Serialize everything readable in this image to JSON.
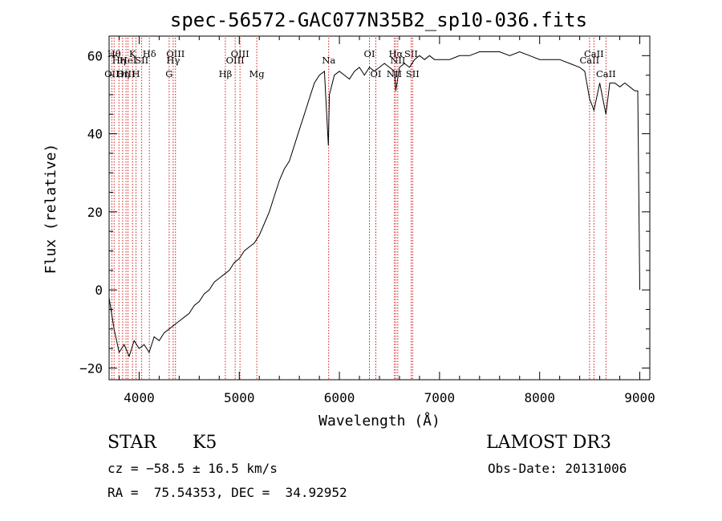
{
  "chart_data": {
    "type": "line",
    "title": "spec-56572-GAC077N35B2_sp10-036.fits",
    "xlabel": "Wavelength (Å)",
    "ylabel": "Flux (relative)",
    "xlim": [
      3700,
      9100
    ],
    "ylim": [
      -23,
      65
    ],
    "xticks": [
      4000,
      5000,
      6000,
      7000,
      8000,
      9000
    ],
    "xtick_labels": [
      "4000",
      "5000",
      "6000",
      "7000",
      "8000",
      "9000"
    ],
    "yticks": [
      -20,
      0,
      20,
      40,
      60
    ],
    "ytick_labels": [
      "−20",
      "0",
      "20",
      "40",
      "60"
    ],
    "series": [
      {
        "name": "spectrum",
        "x": [
          3700,
          3750,
          3800,
          3850,
          3900,
          3950,
          4000,
          4050,
          4100,
          4150,
          4200,
          4250,
          4300,
          4350,
          4400,
          4450,
          4500,
          4550,
          4600,
          4650,
          4700,
          4750,
          4800,
          4850,
          4900,
          4950,
          5000,
          5050,
          5100,
          5150,
          5200,
          5250,
          5300,
          5350,
          5400,
          5450,
          5500,
          5550,
          5600,
          5650,
          5700,
          5750,
          5800,
          5850,
          5890,
          5900,
          5950,
          6000,
          6050,
          6100,
          6150,
          6200,
          6250,
          6300,
          6350,
          6400,
          6450,
          6500,
          6550,
          6563,
          6600,
          6650,
          6700,
          6750,
          6800,
          6850,
          6900,
          6950,
          7000,
          7100,
          7200,
          7300,
          7400,
          7500,
          7600,
          7700,
          7800,
          7900,
          8000,
          8100,
          8200,
          8300,
          8400,
          8450,
          8498,
          8542,
          8600,
          8662,
          8700,
          8750,
          8800,
          8850,
          8900,
          8950,
          8980,
          9000
        ],
        "y": [
          -2,
          -10,
          -16,
          -14,
          -17,
          -13,
          -15,
          -14,
          -16,
          -12,
          -13,
          -11,
          -10,
          -9,
          -8,
          -7,
          -6,
          -4,
          -3,
          -1,
          0,
          2,
          3,
          4,
          5,
          7,
          8,
          10,
          11,
          12,
          14,
          17,
          20,
          24,
          28,
          31,
          33,
          37,
          41,
          45,
          49,
          53,
          55,
          56,
          37,
          50,
          55,
          56,
          55,
          54,
          56,
          57,
          55,
          57,
          56,
          57,
          58,
          57,
          56,
          51,
          57,
          58,
          57,
          59,
          60,
          59,
          60,
          59,
          59,
          59,
          60,
          60,
          61,
          61,
          61,
          60,
          61,
          60,
          59,
          59,
          59,
          58,
          57,
          56,
          49,
          46,
          53,
          45,
          53,
          53,
          52,
          53,
          52,
          51,
          51,
          0
        ]
      }
    ],
    "line_markers": [
      {
        "wave": 3727,
        "label": "OII",
        "row": 3
      },
      {
        "wave": 3750,
        "label": "Hθ",
        "row": 1
      },
      {
        "wave": 3798,
        "label": "Hη",
        "row": 2
      },
      {
        "wave": 3835,
        "label": "Hη",
        "row": 3
      },
      {
        "wave": 3869,
        "label": "OIII",
        "row": 3
      },
      {
        "wave": 3889,
        "label": "HeI",
        "row": 2
      },
      {
        "wave": 3934,
        "label": "K",
        "row": 1
      },
      {
        "wave": 3969,
        "label": "H",
        "row": 3
      },
      {
        "wave": 4026,
        "label": "SII",
        "row": 2
      },
      {
        "wave": 4102,
        "label": "Hδ",
        "row": 1
      },
      {
        "wave": 4300,
        "label": "G",
        "row": 3
      },
      {
        "wave": 4340,
        "label": "Hγ",
        "row": 2
      },
      {
        "wave": 4363,
        "label": "OIII",
        "row": 1
      },
      {
        "wave": 4861,
        "label": "Hβ",
        "row": 3
      },
      {
        "wave": 4959,
        "label": "OIII",
        "row": 2
      },
      {
        "wave": 5007,
        "label": "OIII",
        "row": 1
      },
      {
        "wave": 5175,
        "label": "Mg",
        "row": 3
      },
      {
        "wave": 5893,
        "label": "Na",
        "row": 2
      },
      {
        "wave": 6300,
        "label": "OI",
        "row": 1
      },
      {
        "wave": 6364,
        "label": "OI",
        "row": 3
      },
      {
        "wave": 6548,
        "label": "NII",
        "row": 3
      },
      {
        "wave": 6563,
        "label": "Hα",
        "row": 1
      },
      {
        "wave": 6583,
        "label": "NII",
        "row": 2
      },
      {
        "wave": 6716,
        "label": "SII",
        "row": 1
      },
      {
        "wave": 6731,
        "label": "SII",
        "row": 3
      },
      {
        "wave": 8498,
        "label": "CaII",
        "row": 2
      },
      {
        "wave": 8542,
        "label": "CaII",
        "row": 1
      },
      {
        "wave": 8662,
        "label": "CaII",
        "row": 3
      }
    ]
  },
  "info": {
    "class_label": "STAR",
    "subclass": "K5",
    "survey": "LAMOST DR3",
    "redshift": "cz = −58.5 ± 16.5 km/s",
    "obs_date": "Obs-Date: 20131006",
    "coords": "RA =  75.54353, DEC =  34.92952"
  },
  "colors": {
    "spectrum": "#000000",
    "markers": "#cc0000"
  }
}
